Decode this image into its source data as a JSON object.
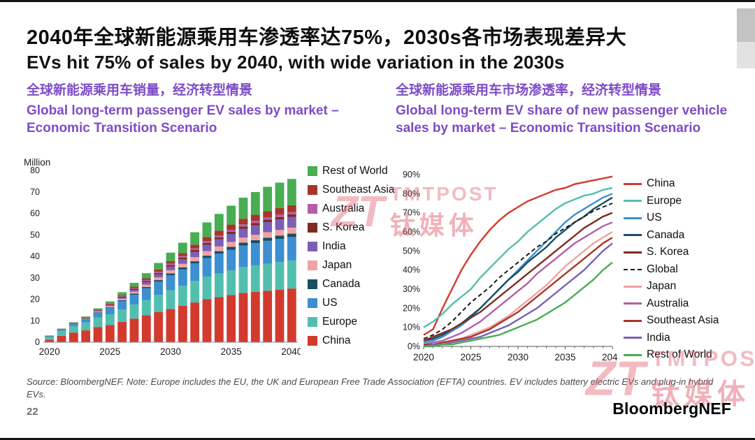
{
  "slide": {
    "title_zh": "2040年全球新能源乘用车渗透率达75%，2030s各市场表现差异大",
    "title_en": "EVs hit 75% of sales by 2040, with wide variation in the 2030s",
    "page_number": "22",
    "brand": "BloombergNEF",
    "source_note": "Source: BloombergNEF. Note: Europe includes the EU, the UK and European Free Trade Association (EFTA) countries. EV includes battery electric EVs and plug-in hybrid EVs.",
    "accent_purple": "#7d4cc6"
  },
  "watermark": {
    "logo_text": "ZT",
    "name_en": "TMTPOST",
    "name_zh": "钛媒体"
  },
  "left_panel": {
    "subtitle_zh": "全球新能源乘用车销量，经济转型情景",
    "subtitle_en": "Global long-term passenger EV sales by market – Economic Transition Scenario"
  },
  "right_panel": {
    "subtitle_zh": "全球新能源乘用车市场渗透率，经济转型情景",
    "subtitle_en": "Global long-term EV share of new passenger vehicle sales by market – Economic Transition Scenario"
  },
  "chart_data": [
    {
      "type": "bar",
      "stacked": true,
      "title": "Global long-term passenger EV sales by market – Economic Transition Scenario",
      "ylabel": "Million",
      "ylim": [
        0,
        80
      ],
      "ytick_step": 10,
      "x": [
        2020,
        2021,
        2022,
        2023,
        2024,
        2025,
        2026,
        2027,
        2028,
        2029,
        2030,
        2031,
        2032,
        2033,
        2034,
        2035,
        2036,
        2037,
        2038,
        2039,
        2040
      ],
      "xticks": [
        2020,
        2025,
        2030,
        2035,
        2040
      ],
      "legend_position": "right",
      "legend_order": "reverse-of-stack",
      "series": [
        {
          "name": "China",
          "color": "#d23a2e",
          "values": [
            1.2,
            3.0,
            4.5,
            5.5,
            7.0,
            8.0,
            9.5,
            11.0,
            12.5,
            14.0,
            15.5,
            17.0,
            18.5,
            20.0,
            21.0,
            22.0,
            23.0,
            23.5,
            24.0,
            24.5,
            25.0
          ]
        },
        {
          "name": "Europe",
          "color": "#52bfae",
          "values": [
            1.4,
            2.3,
            3.0,
            3.7,
            4.5,
            5.0,
            5.8,
            6.5,
            7.2,
            8.0,
            8.7,
            9.3,
            10.0,
            10.5,
            11.0,
            11.5,
            12.0,
            12.3,
            12.6,
            12.8,
            13.0
          ]
        },
        {
          "name": "US",
          "color": "#3d8fd1",
          "values": [
            0.3,
            0.6,
            1.0,
            1.5,
            2.2,
            3.0,
            3.8,
            4.6,
            5.4,
            6.2,
            7.0,
            7.6,
            8.2,
            8.7,
            9.2,
            9.6,
            10.0,
            10.3,
            10.6,
            10.8,
            11.0
          ]
        },
        {
          "name": "Canada",
          "color": "#174f63",
          "values": [
            0.05,
            0.08,
            0.12,
            0.17,
            0.25,
            0.33,
            0.42,
            0.52,
            0.62,
            0.72,
            0.82,
            0.9,
            1.0,
            1.1,
            1.2,
            1.3,
            1.35,
            1.4,
            1.45,
            1.5,
            1.55
          ]
        },
        {
          "name": "Japan",
          "color": "#f0a3a3",
          "values": [
            0.03,
            0.06,
            0.12,
            0.2,
            0.35,
            0.5,
            0.7,
            0.9,
            1.1,
            1.3,
            1.5,
            1.7,
            1.9,
            2.1,
            2.2,
            2.3,
            2.4,
            2.5,
            2.6,
            2.7,
            2.8
          ]
        },
        {
          "name": "India",
          "color": "#7a5fb5",
          "values": [
            0.01,
            0.04,
            0.08,
            0.15,
            0.25,
            0.4,
            0.6,
            0.85,
            1.1,
            1.4,
            1.75,
            2.1,
            2.5,
            2.9,
            3.3,
            3.7,
            4.1,
            4.4,
            4.7,
            4.9,
            5.0
          ]
        },
        {
          "name": "S. Korea",
          "color": "#7e2a1f",
          "values": [
            0.05,
            0.1,
            0.15,
            0.2,
            0.28,
            0.35,
            0.43,
            0.5,
            0.58,
            0.65,
            0.72,
            0.78,
            0.84,
            0.9,
            0.95,
            1.0,
            1.05,
            1.08,
            1.1,
            1.12,
            1.15
          ]
        },
        {
          "name": "Australia",
          "color": "#b25fa6",
          "values": [
            0.01,
            0.02,
            0.05,
            0.1,
            0.15,
            0.22,
            0.3,
            0.38,
            0.46,
            0.54,
            0.62,
            0.7,
            0.77,
            0.84,
            0.9,
            0.96,
            1.0,
            1.05,
            1.08,
            1.1,
            1.12
          ]
        },
        {
          "name": "Southeast Asia",
          "color": "#a8352a",
          "values": [
            0.01,
            0.03,
            0.06,
            0.12,
            0.2,
            0.3,
            0.45,
            0.6,
            0.8,
            1.0,
            1.2,
            1.45,
            1.7,
            1.95,
            2.2,
            2.4,
            2.6,
            2.8,
            2.95,
            3.1,
            3.2
          ]
        },
        {
          "name": "Rest of World",
          "color": "#49ad52",
          "values": [
            0.05,
            0.1,
            0.2,
            0.35,
            0.6,
            0.9,
            1.3,
            1.8,
            2.4,
            3.1,
            3.9,
            4.8,
            5.8,
            6.8,
            7.8,
            8.8,
            9.8,
            10.6,
            11.3,
            11.8,
            12.2
          ]
        }
      ]
    },
    {
      "type": "line",
      "title": "Global long-term EV share of new passenger vehicle sales by market – Economic Transition Scenario",
      "ylabel": "",
      "ylim": [
        0,
        90
      ],
      "ytick_step": 10,
      "ytick_suffix": "%",
      "x": [
        2020,
        2021,
        2022,
        2023,
        2024,
        2025,
        2026,
        2027,
        2028,
        2029,
        2030,
        2031,
        2032,
        2033,
        2034,
        2035,
        2036,
        2037,
        2038,
        2039,
        2040
      ],
      "xticks": [
        2020,
        2025,
        2030,
        2035,
        2040
      ],
      "legend_position": "right",
      "series": [
        {
          "name": "China",
          "color": "#d23a2e",
          "values": [
            6,
            9,
            20,
            30,
            40,
            48,
            55,
            61,
            66,
            70,
            73,
            76,
            78,
            80,
            82,
            83,
            85,
            86,
            87,
            88,
            89
          ]
        },
        {
          "name": "Europe",
          "color": "#52bfae",
          "values": [
            10,
            13,
            17,
            22,
            26,
            30,
            36,
            41,
            46,
            51,
            55,
            60,
            64,
            68,
            72,
            75,
            77,
            79,
            80,
            82,
            83
          ]
        },
        {
          "name": "US",
          "color": "#3d8fd1",
          "values": [
            2,
            3,
            5,
            8,
            11,
            15,
            20,
            25,
            30,
            35,
            40,
            45,
            50,
            55,
            60,
            65,
            69,
            72,
            75,
            78,
            80
          ]
        },
        {
          "name": "Canada",
          "color": "#174f63",
          "values": [
            3,
            4,
            6,
            9,
            12,
            16,
            20,
            25,
            30,
            35,
            39,
            44,
            48,
            52,
            57,
            61,
            65,
            68,
            72,
            75,
            78
          ]
        },
        {
          "name": "S. Korea",
          "color": "#7e2a1f",
          "values": [
            3,
            5,
            7,
            9,
            12,
            15,
            18,
            22,
            26,
            30,
            34,
            38,
            42,
            46,
            50,
            54,
            58,
            62,
            65,
            68,
            70
          ]
        },
        {
          "name": "Global",
          "color": "#1a1a1a",
          "dash": true,
          "values": [
            4,
            6,
            9,
            13,
            18,
            23,
            27,
            31,
            36,
            40,
            44,
            48,
            52,
            55,
            59,
            62,
            65,
            68,
            71,
            73,
            75
          ]
        },
        {
          "name": "Japan",
          "color": "#f0a3a3",
          "values": [
            1,
            1,
            2,
            3,
            4,
            6,
            8,
            10,
            13,
            16,
            20,
            24,
            28,
            32,
            37,
            42,
            46,
            50,
            54,
            57,
            60
          ]
        },
        {
          "name": "Australia",
          "color": "#b25fa6",
          "values": [
            1,
            2,
            3,
            5,
            7,
            10,
            13,
            17,
            21,
            25,
            29,
            33,
            38,
            42,
            46,
            50,
            54,
            57,
            60,
            63,
            65
          ]
        },
        {
          "name": "Southeast Asia",
          "color": "#a8352a",
          "values": [
            1,
            1,
            2,
            3,
            4,
            5,
            7,
            9,
            12,
            15,
            18,
            22,
            26,
            30,
            34,
            38,
            42,
            46,
            50,
            54,
            57
          ]
        },
        {
          "name": "India",
          "color": "#7a5fb5",
          "values": [
            0,
            1,
            1,
            2,
            3,
            4,
            5,
            7,
            9,
            11,
            14,
            17,
            20,
            24,
            28,
            32,
            36,
            40,
            45,
            50,
            54
          ]
        },
        {
          "name": "Rest of World",
          "color": "#49ad52",
          "values": [
            0,
            0,
            1,
            1,
            2,
            3,
            4,
            5,
            6,
            8,
            10,
            12,
            14,
            17,
            20,
            23,
            27,
            31,
            35,
            40,
            44
          ]
        }
      ]
    }
  ]
}
